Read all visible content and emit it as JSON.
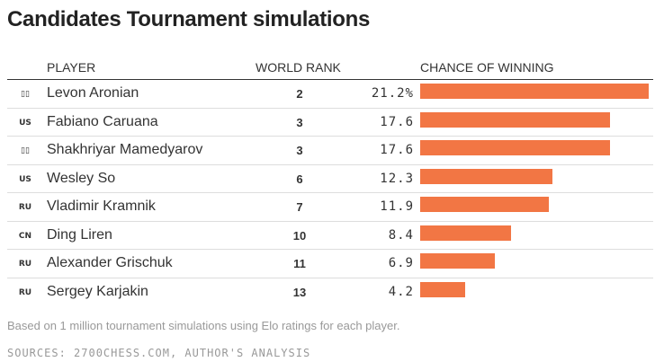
{
  "title": "Candidates Tournament simulations",
  "columns": {
    "player": "PLAYER",
    "rank": "WORLD RANK",
    "chance": "CHANCE OF WINNING"
  },
  "rows": [
    {
      "flag": "▯▯",
      "name": "Levon Aronian",
      "rank": "2",
      "chance_label": "21.2%"
    },
    {
      "flag": "US",
      "name": "Fabiano Caruana",
      "rank": "3",
      "chance_label": "17.6"
    },
    {
      "flag": "▯▯",
      "name": "Shakhriyar Mamedyarov",
      "rank": "3",
      "chance_label": "17.6"
    },
    {
      "flag": "US",
      "name": "Wesley So",
      "rank": "6",
      "chance_label": "12.3"
    },
    {
      "flag": "RU",
      "name": "Vladimir Kramnik",
      "rank": "7",
      "chance_label": "11.9"
    },
    {
      "flag": "CN",
      "name": "Ding Liren",
      "rank": "10",
      "chance_label": "8.4"
    },
    {
      "flag": "RU",
      "name": "Alexander Grischuk",
      "rank": "11",
      "chance_label": "6.9"
    },
    {
      "flag": "RU",
      "name": "Sergey Karjakin",
      "rank": "13",
      "chance_label": "4.2"
    }
  ],
  "note": "Based on 1 million tournament simulations using Elo ratings for each player.",
  "sources": "SOURCES: 2700CHESS.COM, AUTHOR'S ANALYSIS",
  "colors": {
    "bar": "#f27644"
  },
  "chart_data": {
    "type": "bar",
    "categories": [
      "Levon Aronian",
      "Fabiano Caruana",
      "Shakhriyar Mamedyarov",
      "Wesley So",
      "Vladimir Kramnik",
      "Ding Liren",
      "Alexander Grischuk",
      "Sergey Karjakin"
    ],
    "values": [
      21.2,
      17.6,
      17.6,
      12.3,
      11.9,
      8.4,
      6.9,
      4.2
    ],
    "orientation": "horizontal",
    "ylim": [
      0,
      21.2
    ]
  }
}
